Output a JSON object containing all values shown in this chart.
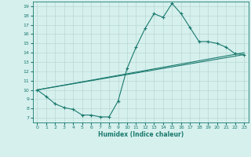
{
  "xlabel": "Humidex (Indice chaleur)",
  "bg_color": "#d6f0ee",
  "line_color": "#1a7a6e",
  "grid_color": "#b8d8d4",
  "xlim": [
    -0.5,
    23.5
  ],
  "ylim": [
    6.5,
    19.5
  ],
  "xticks": [
    0,
    1,
    2,
    3,
    4,
    5,
    6,
    7,
    8,
    9,
    10,
    11,
    12,
    13,
    14,
    15,
    16,
    17,
    18,
    19,
    20,
    21,
    22,
    23
  ],
  "yticks": [
    7,
    8,
    9,
    10,
    11,
    12,
    13,
    14,
    15,
    16,
    17,
    18,
    19
  ],
  "curve1_x": [
    0,
    1,
    2,
    3,
    4,
    5,
    6,
    7,
    8,
    9,
    10,
    11,
    12,
    13,
    14,
    15,
    16,
    17,
    18,
    19,
    20,
    21,
    22,
    23
  ],
  "curve1_y": [
    10.0,
    9.3,
    8.5,
    8.1,
    7.9,
    7.3,
    7.3,
    7.1,
    7.1,
    8.8,
    12.3,
    14.6,
    16.6,
    18.2,
    17.8,
    19.3,
    18.2,
    16.7,
    15.2,
    15.2,
    15.0,
    14.6,
    13.9,
    13.8
  ],
  "curve2_x": [
    0,
    23
  ],
  "curve2_y": [
    10.0,
    14.0
  ],
  "curve3_x": [
    0,
    23
  ],
  "curve3_y": [
    10.0,
    13.8
  ]
}
